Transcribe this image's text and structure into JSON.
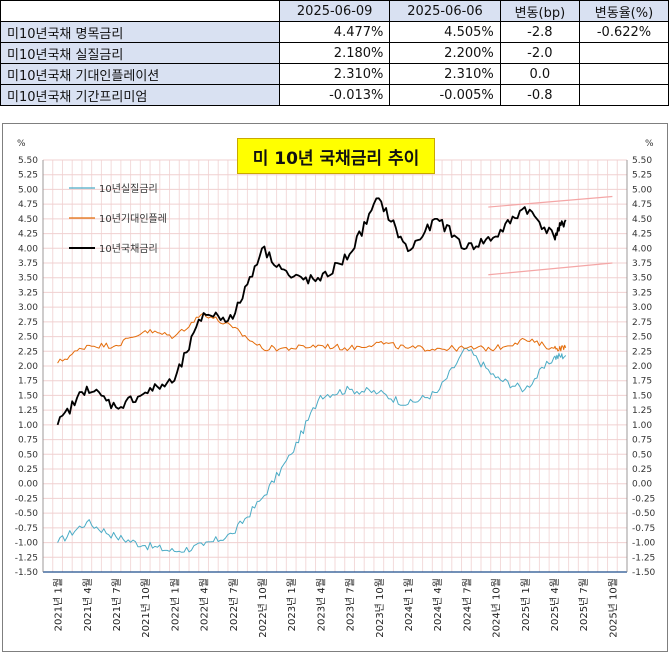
{
  "table": {
    "headers": [
      "",
      "2025-06-09",
      "2025-06-06",
      "변동(bp)",
      "변동율(%)"
    ],
    "rows": [
      {
        "label": "미10년국채 명목금리",
        "v1": "4.477%",
        "v2": "4.505%",
        "bp": "-2.8",
        "pct": "-0.622%"
      },
      {
        "label": "미10년국채 실질금리",
        "v1": "2.180%",
        "v2": "2.200%",
        "bp": "-2.0",
        "pct": ""
      },
      {
        "label": "미10년국채 기대인플레이션",
        "v1": "2.310%",
        "v2": "2.310%",
        "bp": "0.0",
        "pct": ""
      },
      {
        "label": "미10년국채 기간프리미엄",
        "v1": "-0.013%",
        "v2": "-0.005%",
        "bp": "-0.8",
        "pct": ""
      }
    ]
  },
  "chart_data": {
    "type": "line",
    "title": "미 10년 국채금리 추이",
    "y_unit_left": "%",
    "y_unit_right": "%",
    "ylim": [
      -1.5,
      5.5
    ],
    "ytick_step": 0.25,
    "yticks": [
      "-1.50",
      "-1.25",
      "-1.00",
      "-0.75",
      "-0.50",
      "-0.25",
      "0.00",
      "0.25",
      "0.50",
      "0.75",
      "1.00",
      "1.25",
      "1.50",
      "1.75",
      "2.00",
      "2.25",
      "2.50",
      "2.75",
      "3.00",
      "3.25",
      "3.50",
      "3.75",
      "4.00",
      "4.25",
      "4.50",
      "4.75",
      "5.00",
      "5.25",
      "5.50"
    ],
    "x_categories": [
      "2021년 1월",
      "2021년 4월",
      "2021년 7월",
      "2021년 10월",
      "2022년 1월",
      "2022년 4월",
      "2022년 7월",
      "2022년 10월",
      "2023년 1월",
      "2023년 4월",
      "2023년 7월",
      "2023년 10월",
      "2024년 1월",
      "2024년 4월",
      "2024년 7월",
      "2024년 10월",
      "2025년 1월",
      "2025년 4월",
      "2025년 7월",
      "2025년 10월"
    ],
    "grid": true,
    "legend_position": "top-left",
    "series": [
      {
        "name": "10년실질금리",
        "color": "#4bacc6",
        "x": [
          0,
          1,
          2,
          3,
          4,
          5,
          6,
          7,
          8,
          9,
          10,
          11,
          12,
          13,
          14,
          15,
          16,
          17,
          17.4
        ],
        "y": [
          -1.0,
          -0.65,
          -0.9,
          -1.05,
          -1.15,
          -1.05,
          -0.85,
          -0.25,
          0.5,
          1.5,
          1.6,
          1.55,
          1.35,
          1.55,
          2.3,
          1.8,
          1.6,
          2.15,
          2.18
        ]
      },
      {
        "name": "10년기대인플레",
        "color": "#e46c0a",
        "x": [
          0,
          1,
          2,
          3,
          4,
          5,
          6,
          7,
          8,
          9,
          10,
          11,
          12,
          13,
          14,
          15,
          16,
          17,
          17.4
        ],
        "y": [
          2.05,
          2.35,
          2.35,
          2.6,
          2.5,
          2.9,
          2.65,
          2.3,
          2.3,
          2.35,
          2.3,
          2.4,
          2.3,
          2.3,
          2.3,
          2.3,
          2.45,
          2.3,
          2.31
        ]
      },
      {
        "name": "10년국채금리",
        "color": "#000000",
        "x": [
          0,
          1,
          2,
          3,
          4,
          5,
          6,
          7,
          8,
          9,
          10,
          11,
          12,
          13,
          14,
          15,
          16,
          17,
          17.4
        ],
        "y": [
          1.0,
          1.65,
          1.3,
          1.55,
          1.75,
          2.9,
          2.8,
          4.0,
          3.5,
          3.45,
          3.9,
          4.85,
          3.95,
          4.5,
          4.0,
          4.2,
          4.7,
          4.2,
          4.48
        ]
      }
    ],
    "trend_lines": {
      "color": "#f4a6a6",
      "upper": {
        "x": [
          14.75,
          19.0
        ],
        "y": [
          4.7,
          4.88
        ]
      },
      "lower": {
        "x": [
          14.75,
          19.0
        ],
        "y": [
          3.55,
          3.75
        ]
      }
    }
  }
}
